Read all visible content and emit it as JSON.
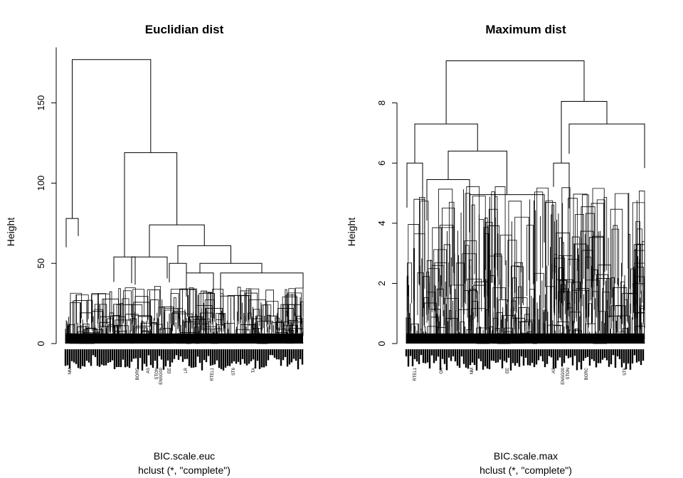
{
  "chart_data": [
    {
      "type": "dendrogram",
      "title": "Euclidian dist",
      "ylabel": "Height",
      "xlabel": "BIC.scale.euc",
      "sub": "hclust (*, \"complete\")",
      "yticks": [
        0,
        50,
        100,
        150
      ],
      "ylim": [
        0,
        180
      ],
      "top_merges": [
        {
          "height": 177,
          "label": "root"
        },
        {
          "height": 119,
          "label": "right cluster"
        },
        {
          "height": 78,
          "label": "left cluster"
        },
        {
          "height": 74,
          "label": "sub-cluster"
        },
        {
          "height": 61,
          "label": "sub-cluster"
        },
        {
          "height": 54,
          "label": "sub-cluster"
        },
        {
          "height": 50,
          "label": "sub-cluster"
        },
        {
          "height": 44,
          "label": "sub-cluster"
        }
      ],
      "visible_leaf_labels": [
        "NM",
        "BORC",
        "AS",
        "STON",
        "ENSG00",
        "EE",
        "LR",
        "RTEL1",
        "ST6",
        "TA"
      ]
    },
    {
      "type": "dendrogram",
      "title": "Maximum dist",
      "ylabel": "Height",
      "xlabel": "BIC.scale.max",
      "sub": "hclust (*, \"complete\")",
      "yticks": [
        0,
        2,
        4,
        6,
        8
      ],
      "ylim": [
        0,
        9.6
      ],
      "top_merges": [
        {
          "height": 9.4,
          "label": "root"
        },
        {
          "height": 8.05,
          "label": "right cluster"
        },
        {
          "height": 7.3,
          "label": "left cluster"
        },
        {
          "height": 6.4,
          "label": "sub-cluster"
        },
        {
          "height": 6.0,
          "label": "sub-cluster"
        },
        {
          "height": 5.45,
          "label": "sub-cluster"
        },
        {
          "height": 4.95,
          "label": "sub-cluster"
        }
      ],
      "visible_leaf_labels": [
        "RTEL1",
        "GA",
        "NM",
        "EE",
        "AS",
        "ENSG00",
        "STON",
        "BORC",
        "ST6"
      ]
    }
  ]
}
